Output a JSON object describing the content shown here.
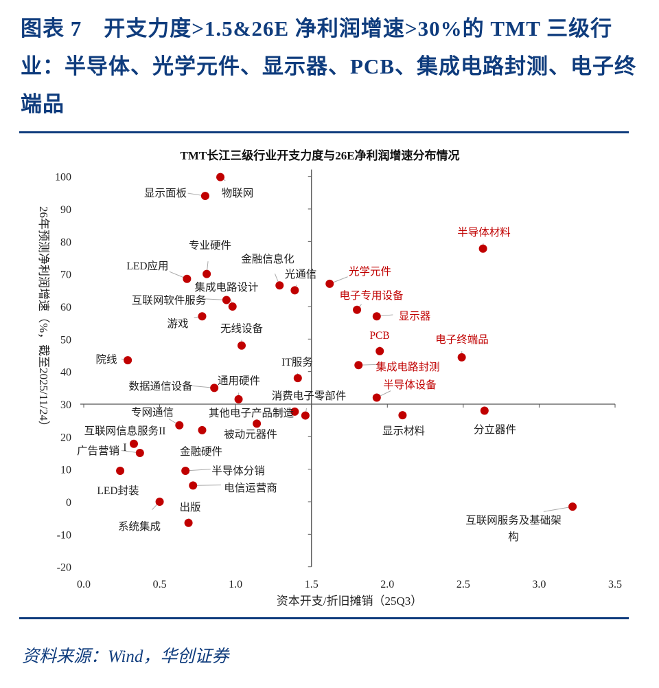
{
  "header": {
    "title": "图表 7　开支力度>1.5&26E 净利润增速>30%的 TMT 三级行业：半导体、光学元件、显示器、PCB、集成电路封测、电子终端品"
  },
  "footer": {
    "source": "资料来源：Wind，华创证券"
  },
  "colors": {
    "brand": "#0f3c7d",
    "point": "#c00000",
    "highlight_label": "#c00000",
    "label": "#222222"
  },
  "chart_data": {
    "type": "scatter",
    "title": "TMT长江三级行业开支力度与26E净利润增速分布情况",
    "xlabel": "资本开支/折旧摊销（25Q3）",
    "ylabel": "26年预测净利润增速（%，截至2025/11/24）",
    "xlim": [
      0,
      3.5
    ],
    "ylim": [
      -20,
      100
    ],
    "xticks": [
      "0.0",
      "0.5",
      "1.0",
      "1.5",
      "2.0",
      "2.5",
      "3.0",
      "3.5"
    ],
    "yticks": [
      "100",
      "90",
      "80",
      "70",
      "60",
      "50",
      "40",
      "30",
      "20",
      "10",
      "0",
      "-10",
      "-20"
    ],
    "axis_cross": {
      "x": 1.5,
      "y": 30
    },
    "grid": false,
    "points": [
      {
        "label": "物联网",
        "x": 0.9,
        "y": 99.8,
        "highlight": false
      },
      {
        "label": "显示面板",
        "x": 0.8,
        "y": 94,
        "highlight": false
      },
      {
        "label": "专业硬件",
        "x": 0.81,
        "y": 70,
        "highlight": false
      },
      {
        "label": "LED应用",
        "x": 0.68,
        "y": 68.5,
        "highlight": false
      },
      {
        "label": "集成电路设计",
        "x": 0.98,
        "y": 60,
        "highlight": false
      },
      {
        "label": "互联网软件服务",
        "x": 0.94,
        "y": 62,
        "highlight": false
      },
      {
        "label": "游戏",
        "x": 0.78,
        "y": 57,
        "highlight": false
      },
      {
        "label": "无线设备",
        "x": 1.04,
        "y": 48,
        "highlight": false
      },
      {
        "label": "院线",
        "x": 0.29,
        "y": 43.5,
        "highlight": false
      },
      {
        "label": "金融信息化",
        "x": 1.29,
        "y": 66.5,
        "highlight": false
      },
      {
        "label": "光通信",
        "x": 1.39,
        "y": 65,
        "highlight": false
      },
      {
        "label": "IT服务",
        "x": 1.41,
        "y": 38,
        "highlight": false
      },
      {
        "label": "数据通信设备",
        "x": 0.86,
        "y": 35,
        "highlight": false
      },
      {
        "label": "通用硬件",
        "x": 1.02,
        "y": 31.5,
        "highlight": false
      },
      {
        "label": "消费电子零部件",
        "x": 1.46,
        "y": 26.5,
        "highlight": false
      },
      {
        "label": "其他电子产品制造",
        "x": 1.39,
        "y": 27.7,
        "highlight": false
      },
      {
        "label": "专网通信",
        "x": 0.63,
        "y": 23.5,
        "highlight": false
      },
      {
        "label": "金融硬件",
        "x": 0.78,
        "y": 22,
        "highlight": false
      },
      {
        "label": "被动元器件",
        "x": 1.14,
        "y": 24,
        "highlight": false
      },
      {
        "label": "互联网信息服务III",
        "x": 0.33,
        "y": 17.8,
        "highlight": false
      },
      {
        "label": "广告营销",
        "x": 0.37,
        "y": 15,
        "highlight": false
      },
      {
        "label": "LED封装",
        "x": 0.24,
        "y": 9.5,
        "highlight": false
      },
      {
        "label": "半导体分销",
        "x": 0.67,
        "y": 9.5,
        "highlight": false
      },
      {
        "label": "电信运营商",
        "x": 0.72,
        "y": 5,
        "highlight": false
      },
      {
        "label": "系统集成",
        "x": 0.5,
        "y": 0,
        "highlight": false
      },
      {
        "label": "出版",
        "x": 0.69,
        "y": -6.5,
        "highlight": false
      },
      {
        "label": "半导体材料",
        "x": 2.63,
        "y": 77.8,
        "highlight": true
      },
      {
        "label": "光学元件",
        "x": 1.62,
        "y": 67,
        "highlight": true
      },
      {
        "label": "电子专用设备",
        "x": 1.8,
        "y": 59,
        "highlight": true
      },
      {
        "label": "显示器",
        "x": 1.93,
        "y": 57,
        "highlight": true
      },
      {
        "label": "PCB",
        "x": 1.95,
        "y": 46.3,
        "highlight": true
      },
      {
        "label": "集成电路封测",
        "x": 1.81,
        "y": 42,
        "highlight": true
      },
      {
        "label": "电子终端品",
        "x": 2.49,
        "y": 44.4,
        "highlight": true
      },
      {
        "label": "半导体设备",
        "x": 1.93,
        "y": 32,
        "highlight": true
      },
      {
        "label": "显示材料",
        "x": 2.1,
        "y": 26.6,
        "highlight": false
      },
      {
        "label": "分立器件",
        "x": 2.64,
        "y": 28,
        "highlight": false
      },
      {
        "label": "互联网服务及基础架构",
        "x": 3.22,
        "y": -1.5,
        "highlight": false
      }
    ]
  }
}
